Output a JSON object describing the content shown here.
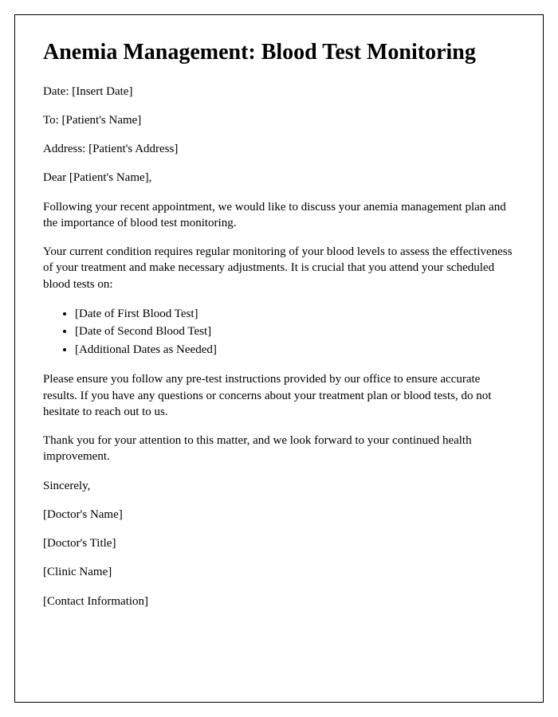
{
  "title": "Anemia Management: Blood Test Monitoring",
  "meta": {
    "date_label": "Date: ",
    "date_value": "[Insert Date]",
    "to_label": "To: ",
    "to_value": "[Patient's Name]",
    "address_label": "Address: ",
    "address_value": "[Patient's Address]"
  },
  "salutation": "Dear [Patient's Name],",
  "body": {
    "p1": "Following your recent appointment, we would like to discuss your anemia management plan and the importance of blood test monitoring.",
    "p2": "Your current condition requires regular monitoring of your blood levels to assess the effectiveness of your treatment and make necessary adjustments. It is crucial that you attend your scheduled blood tests on:",
    "test_dates": [
      "[Date of First Blood Test]",
      "[Date of Second Blood Test]",
      "[Additional Dates as Needed]"
    ],
    "p3": "Please ensure you follow any pre-test instructions provided by our office to ensure accurate results. If you have any questions or concerns about your treatment plan or blood tests, do not hesitate to reach out to us.",
    "p4": "Thank you for your attention to this matter, and we look forward to your continued health improvement."
  },
  "closing": {
    "sincerely": "Sincerely,",
    "doctor_name": "[Doctor's Name]",
    "doctor_title": "[Doctor's Title]",
    "clinic_name": "[Clinic Name]",
    "contact_info": "[Contact Information]"
  },
  "styling": {
    "font_family": "Times New Roman",
    "title_fontsize": 28,
    "body_fontsize": 15,
    "text_color": "#000000",
    "background_color": "#ffffff",
    "border_color": "#000000",
    "paragraph_spacing": 16
  }
}
